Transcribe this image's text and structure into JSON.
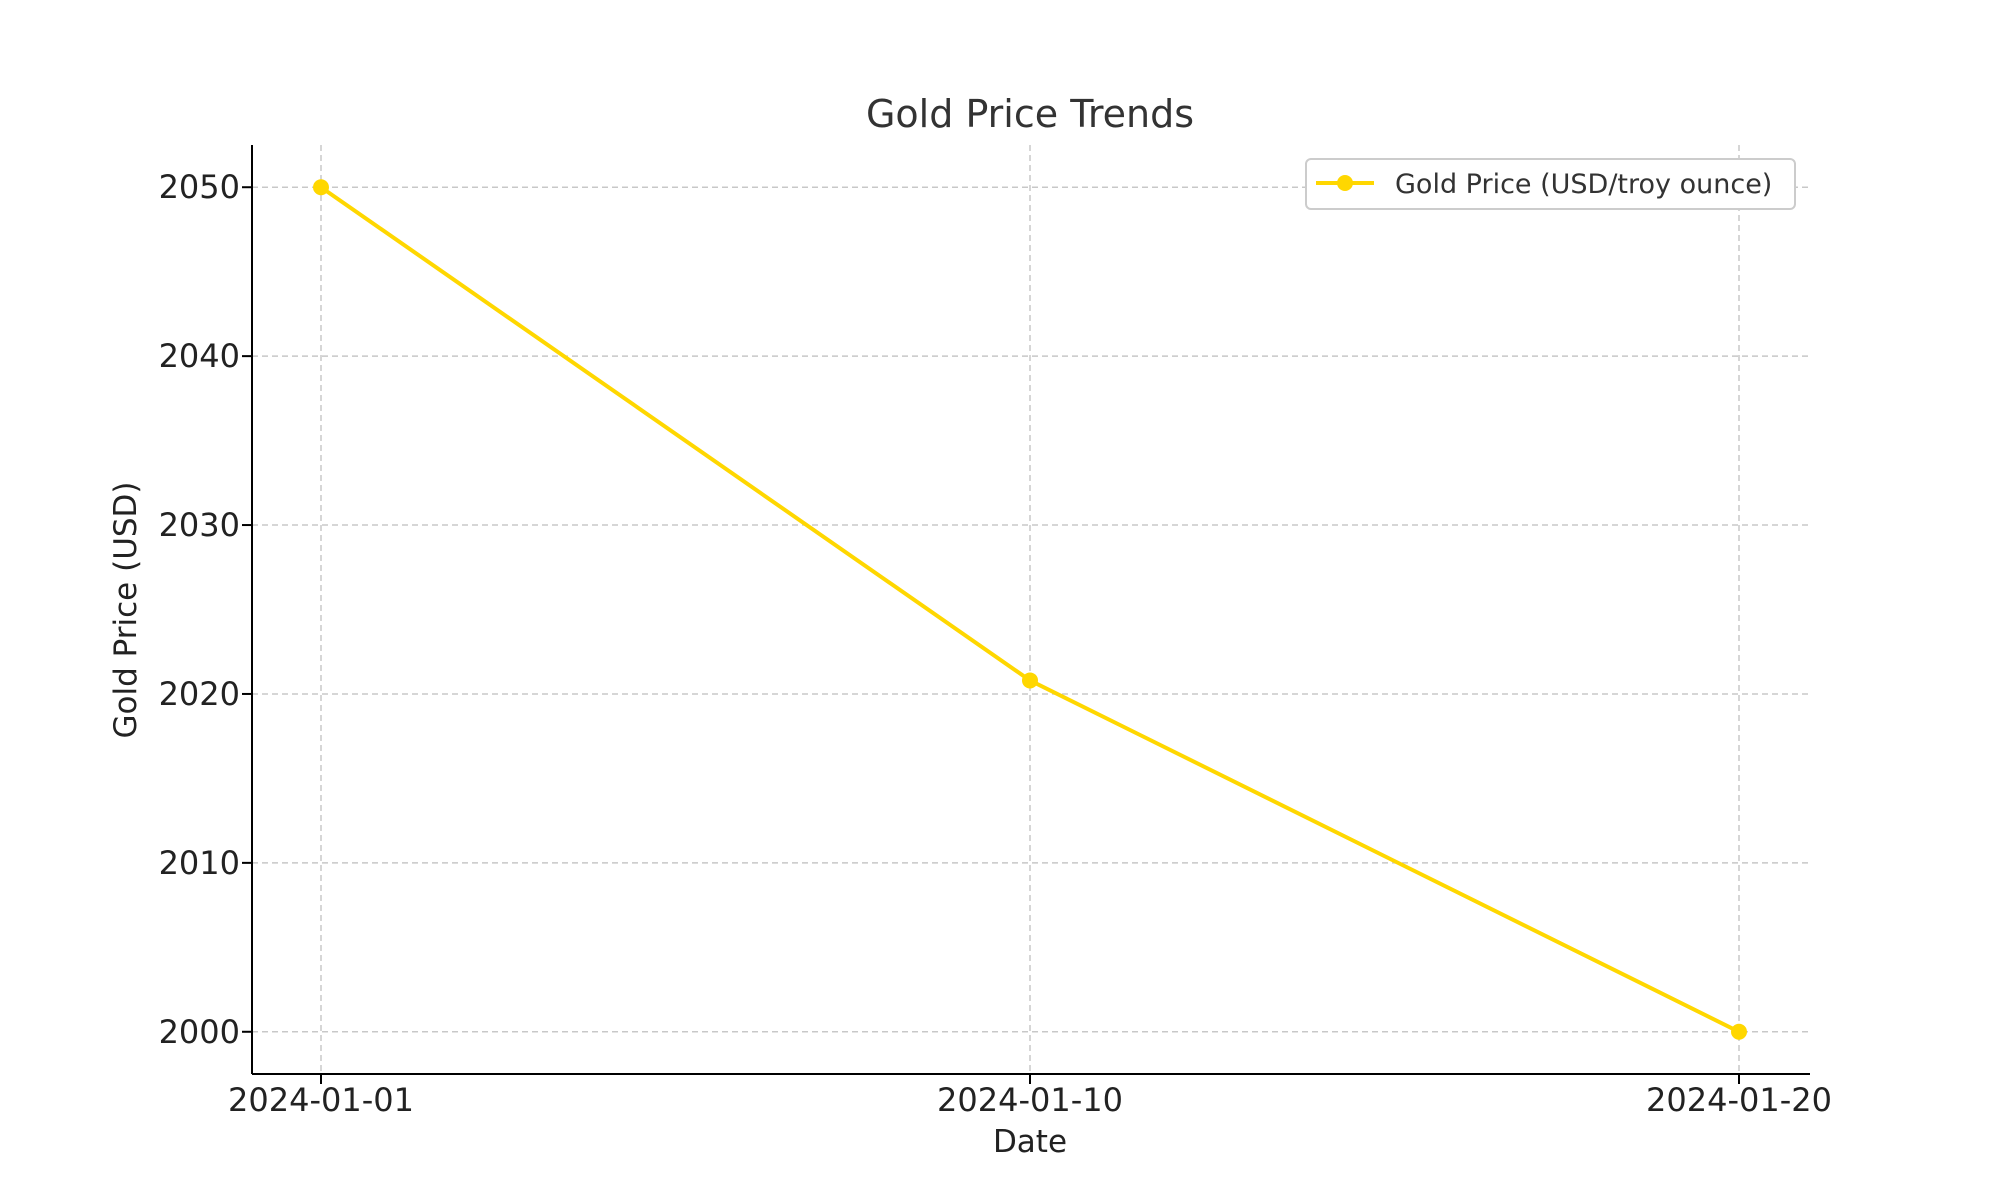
{
  "chart_data": {
    "type": "line",
    "title": "Gold Price Trends",
    "xlabel": "Date",
    "ylabel": "Gold Price (USD)",
    "x": [
      "2024-01-01",
      "2024-01-10",
      "2024-01-20"
    ],
    "series": [
      {
        "name": "Gold Price (USD/troy ounce)",
        "values": [
          2050,
          2020.8,
          2000
        ],
        "color": "#FFD700"
      }
    ],
    "ylim": [
      1997.5,
      2052.5
    ],
    "yticks": [
      2000,
      2010,
      2020,
      2030,
      2040,
      2050
    ],
    "xticks": [
      "2024-01-01",
      "2024-01-10",
      "2024-01-20"
    ],
    "grid": true,
    "legend": "top-right"
  }
}
